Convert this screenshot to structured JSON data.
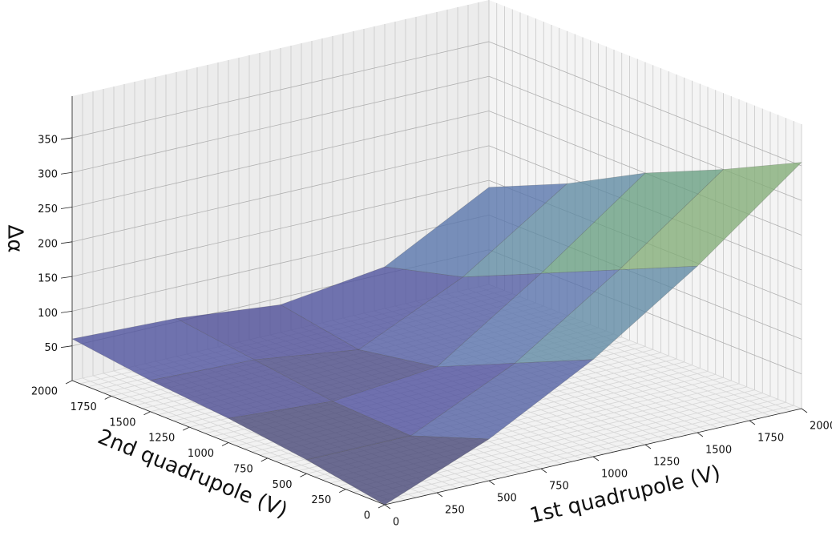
{
  "chart_data": {
    "type": "surface",
    "x_label": "1st quadrupole (V)",
    "y_label": "2nd quadrupole (V)",
    "z_label": "Δα",
    "x": [
      0,
      500,
      1000,
      1500,
      2000
    ],
    "y": [
      0,
      500,
      1000,
      1500,
      2000
    ],
    "z": [
      [
        0,
        60,
        140,
        240,
        355
      ],
      [
        20,
        20,
        90,
        190,
        300
      ],
      [
        35,
        25,
        40,
        140,
        250
      ],
      [
        45,
        40,
        20,
        90,
        190
      ],
      [
        60,
        55,
        40,
        60,
        140
      ]
    ],
    "xlim": [
      0,
      2000
    ],
    "ylim": [
      0,
      2000
    ],
    "zlim": [
      0,
      410
    ],
    "xticks": [
      0,
      250,
      500,
      750,
      1000,
      1250,
      1500,
      1750,
      2000
    ],
    "yticks": [
      0,
      250,
      500,
      750,
      1000,
      1250,
      1500,
      1750,
      2000
    ],
    "zticks": [
      50,
      100,
      150,
      200,
      250,
      300,
      350
    ],
    "grid": true
  }
}
